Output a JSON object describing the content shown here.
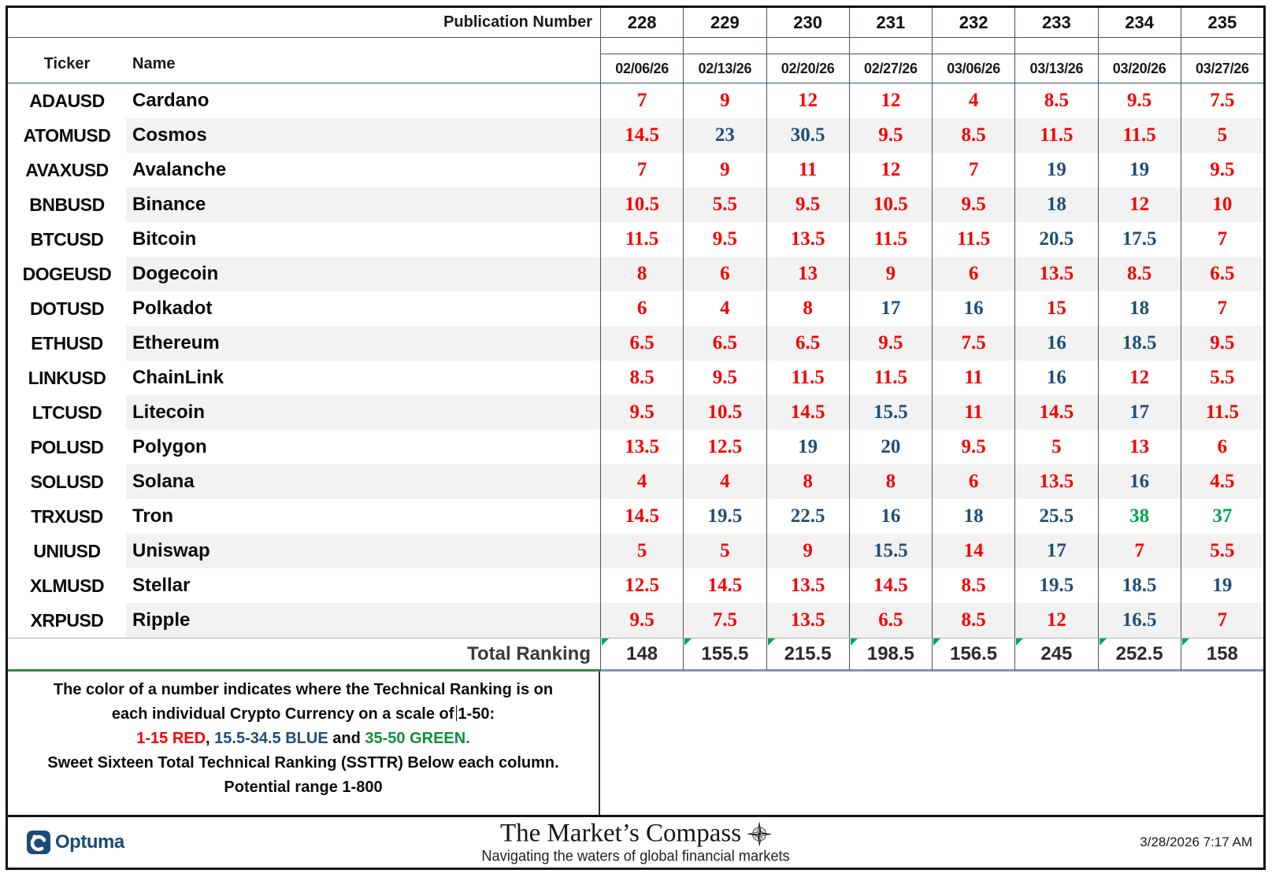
{
  "header": {
    "publication_label": "Publication Number",
    "ticker_label": "Ticker",
    "name_label": "Name",
    "publication_numbers": [
      "228",
      "229",
      "230",
      "231",
      "232",
      "233",
      "234",
      "235"
    ],
    "dates": [
      "02/06/26",
      "02/13/26",
      "02/20/26",
      "02/27/26",
      "03/06/26",
      "03/13/26",
      "03/20/26",
      "03/27/26"
    ]
  },
  "rows": [
    {
      "ticker": "ADAUSD",
      "name": "Cardano",
      "values": [
        "7",
        "9",
        "12",
        "12",
        "4",
        "8.5",
        "9.5",
        "7.5"
      ],
      "colors": [
        "red",
        "red",
        "red",
        "red",
        "red",
        "red",
        "red",
        "red"
      ]
    },
    {
      "ticker": "ATOMUSD",
      "name": "Cosmos",
      "values": [
        "14.5",
        "23",
        "30.5",
        "9.5",
        "8.5",
        "11.5",
        "11.5",
        "5"
      ],
      "colors": [
        "red",
        "blue",
        "blue",
        "red",
        "red",
        "red",
        "red",
        "red"
      ]
    },
    {
      "ticker": "AVAXUSD",
      "name": "Avalanche",
      "values": [
        "7",
        "9",
        "11",
        "12",
        "7",
        "19",
        "19",
        "9.5"
      ],
      "colors": [
        "red",
        "red",
        "red",
        "red",
        "red",
        "blue",
        "blue",
        "red"
      ]
    },
    {
      "ticker": "BNBUSD",
      "name": "Binance",
      "values": [
        "10.5",
        "5.5",
        "9.5",
        "10.5",
        "9.5",
        "18",
        "12",
        "10"
      ],
      "colors": [
        "red",
        "red",
        "red",
        "red",
        "red",
        "blue",
        "red",
        "red"
      ]
    },
    {
      "ticker": "BTCUSD",
      "name": "Bitcoin",
      "values": [
        "11.5",
        "9.5",
        "13.5",
        "11.5",
        "11.5",
        "20.5",
        "17.5",
        "7"
      ],
      "colors": [
        "red",
        "red",
        "red",
        "red",
        "red",
        "blue",
        "blue",
        "red"
      ]
    },
    {
      "ticker": "DOGEUSD",
      "name": "Dogecoin",
      "values": [
        "8",
        "6",
        "13",
        "9",
        "6",
        "13.5",
        "8.5",
        "6.5"
      ],
      "colors": [
        "red",
        "red",
        "red",
        "red",
        "red",
        "red",
        "red",
        "red"
      ]
    },
    {
      "ticker": "DOTUSD",
      "name": "Polkadot",
      "values": [
        "6",
        "4",
        "8",
        "17",
        "16",
        "15",
        "18",
        "7"
      ],
      "colors": [
        "red",
        "red",
        "red",
        "blue",
        "blue",
        "red",
        "blue",
        "red"
      ]
    },
    {
      "ticker": "ETHUSD",
      "name": "Ethereum",
      "values": [
        "6.5",
        "6.5",
        "6.5",
        "9.5",
        "7.5",
        "16",
        "18.5",
        "9.5"
      ],
      "colors": [
        "red",
        "red",
        "red",
        "red",
        "red",
        "blue",
        "blue",
        "red"
      ]
    },
    {
      "ticker": "LINKUSD",
      "name": "ChainLink",
      "values": [
        "8.5",
        "9.5",
        "11.5",
        "11.5",
        "11",
        "16",
        "12",
        "5.5"
      ],
      "colors": [
        "red",
        "red",
        "red",
        "red",
        "red",
        "blue",
        "red",
        "red"
      ]
    },
    {
      "ticker": "LTCUSD",
      "name": "Litecoin",
      "values": [
        "9.5",
        "10.5",
        "14.5",
        "15.5",
        "11",
        "14.5",
        "17",
        "11.5"
      ],
      "colors": [
        "red",
        "red",
        "red",
        "blue",
        "red",
        "red",
        "blue",
        "red"
      ]
    },
    {
      "ticker": "POLUSD",
      "name": "Polygon",
      "values": [
        "13.5",
        "12.5",
        "19",
        "20",
        "9.5",
        "5",
        "13",
        "6"
      ],
      "colors": [
        "red",
        "red",
        "blue",
        "blue",
        "red",
        "red",
        "red",
        "red"
      ]
    },
    {
      "ticker": "SOLUSD",
      "name": "Solana",
      "values": [
        "4",
        "4",
        "8",
        "8",
        "6",
        "13.5",
        "16",
        "4.5"
      ],
      "colors": [
        "red",
        "red",
        "red",
        "red",
        "red",
        "red",
        "blue",
        "red"
      ]
    },
    {
      "ticker": "TRXUSD",
      "name": "Tron",
      "values": [
        "14.5",
        "19.5",
        "22.5",
        "16",
        "18",
        "25.5",
        "38",
        "37"
      ],
      "colors": [
        "red",
        "blue",
        "blue",
        "blue",
        "blue",
        "blue",
        "green",
        "green"
      ]
    },
    {
      "ticker": "UNIUSD",
      "name": "Uniswap",
      "values": [
        "5",
        "5",
        "9",
        "15.5",
        "14",
        "17",
        "7",
        "5.5"
      ],
      "colors": [
        "red",
        "red",
        "red",
        "blue",
        "red",
        "blue",
        "red",
        "red"
      ]
    },
    {
      "ticker": "XLMUSD",
      "name": "Stellar",
      "values": [
        "12.5",
        "14.5",
        "13.5",
        "14.5",
        "8.5",
        "19.5",
        "18.5",
        "19"
      ],
      "colors": [
        "red",
        "red",
        "red",
        "red",
        "red",
        "blue",
        "blue",
        "blue"
      ]
    },
    {
      "ticker": "XRPUSD",
      "name": "Ripple",
      "values": [
        "9.5",
        "7.5",
        "13.5",
        "6.5",
        "8.5",
        "12",
        "16.5",
        "7"
      ],
      "colors": [
        "red",
        "red",
        "red",
        "red",
        "red",
        "red",
        "blue",
        "red"
      ]
    }
  ],
  "totals": {
    "label": "Total Ranking",
    "values": [
      "148",
      "155.5",
      "215.5",
      "198.5",
      "156.5",
      "245",
      "252.5",
      "158"
    ]
  },
  "legend": {
    "line1": "The color of a number indicates where the Technical Ranking is on",
    "line2a": "each individual Crypto Currency on a scale of",
    "line2b": "1-50:",
    "line3_parts": [
      {
        "text": "1-15 RED",
        "color": "red"
      },
      {
        "text": ", ",
        "color": "dark"
      },
      {
        "text": "15.5-34.5 BLUE",
        "color": "blue"
      },
      {
        "text": " and ",
        "color": "dark"
      },
      {
        "text": "35-50 GREEN.",
        "color": "green"
      }
    ],
    "line4": "Sweet Sixteen Total Technical Ranking (SSTTR) Below each column.",
    "line5": "Potential range 1-800"
  },
  "colors": {
    "red": "#f80000",
    "blue": "#1f4e79",
    "green": "#0f8f3c",
    "dark": "#0c0c0c"
  },
  "footer": {
    "brand": "Optuma",
    "title": "The Market’s Compass",
    "subtitle": "Navigating the waters of global financial markets",
    "timestamp": "3/28/2026 7:17 AM",
    "compass_icon": "compass-rose-icon"
  }
}
